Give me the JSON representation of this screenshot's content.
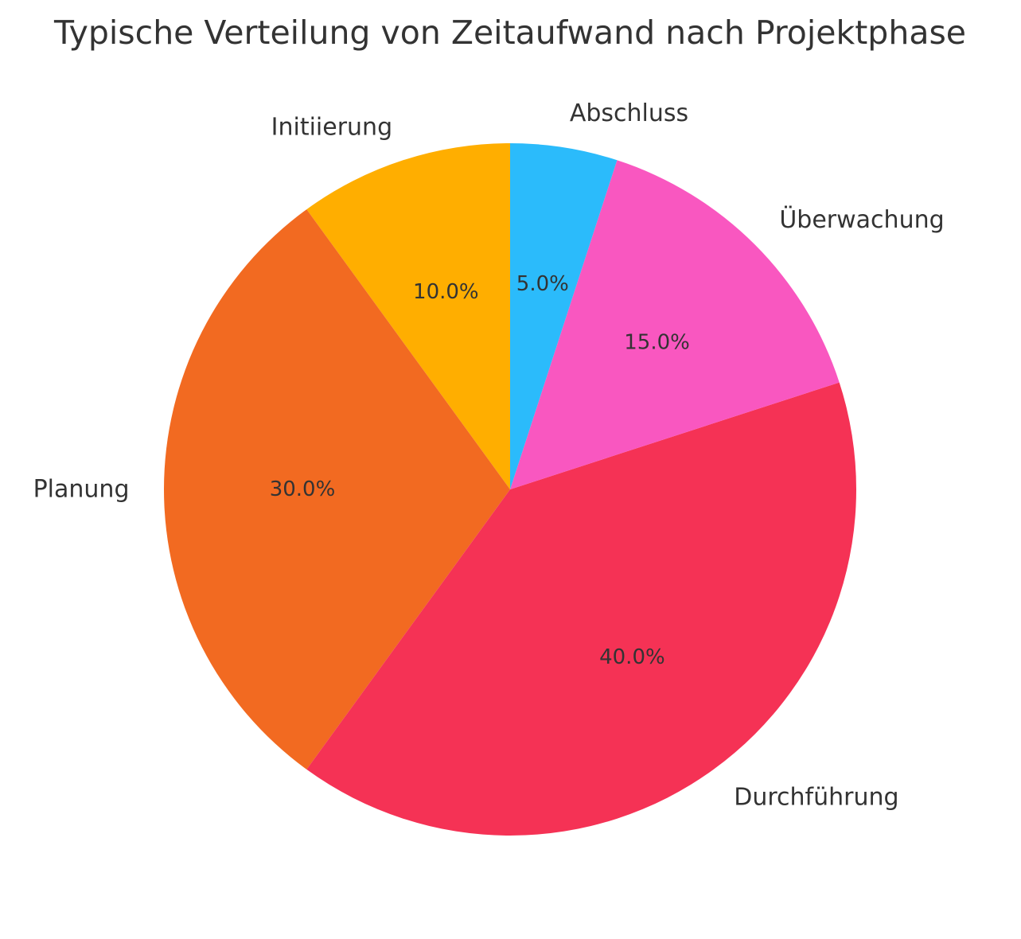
{
  "chart_data": {
    "type": "pie",
    "title": "Typische Verteilung von Zeitaufwand nach Projektphase",
    "start_angle_deg": 90,
    "direction": "counterclockwise",
    "slices": [
      {
        "label": "Initiierung",
        "value": 10,
        "pct_label": "10.0%",
        "color": "#FFAE00"
      },
      {
        "label": "Planung",
        "value": 30,
        "pct_label": "30.0%",
        "color": "#F26A21"
      },
      {
        "label": "Durchführung",
        "value": 40,
        "pct_label": "40.0%",
        "color": "#F53255"
      },
      {
        "label": "Überwachung",
        "value": 15,
        "pct_label": "15.0%",
        "color": "#F957C0"
      },
      {
        "label": "Abschluss",
        "value": 5,
        "pct_label": "5.0%",
        "color": "#2BBBFB"
      }
    ]
  }
}
